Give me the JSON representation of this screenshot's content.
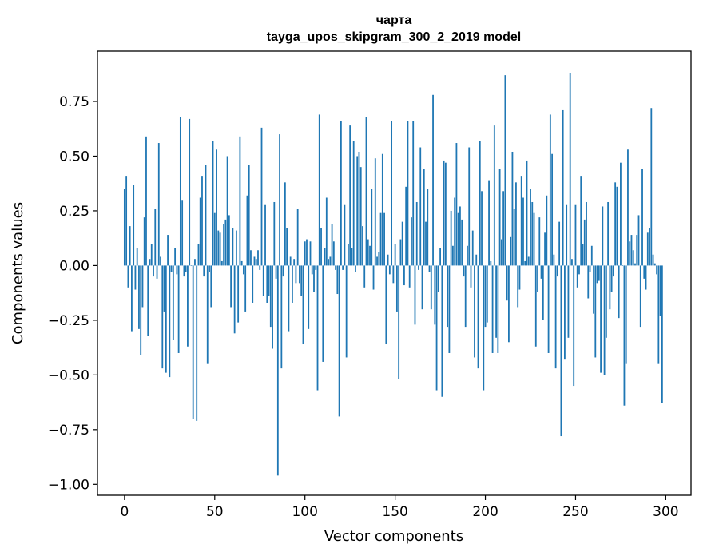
{
  "chart_data": {
    "type": "bar",
    "title": "чарта",
    "subtitle": "tayga_upos_skipgram_300_2_2019 model",
    "xlabel": "Vector components",
    "ylabel": "Components values",
    "xlim": [
      -15,
      314
    ],
    "ylim": [
      -1.05,
      0.98
    ],
    "xticks": [
      0,
      50,
      100,
      150,
      200,
      250,
      300
    ],
    "yticks": [
      -1.0,
      -0.75,
      -0.5,
      -0.25,
      0.0,
      0.25,
      0.5,
      0.75
    ],
    "xtick_labels": [
      "0",
      "50",
      "100",
      "150",
      "200",
      "250",
      "300"
    ],
    "ytick_labels": [
      "−1.00",
      "−0.75",
      "−0.50",
      "−0.25",
      "0.00",
      "0.25",
      "0.50",
      "0.75"
    ],
    "bar_color": "#1f77b4",
    "grid": false,
    "values": [
      0.35,
      0.41,
      -0.1,
      0.18,
      -0.3,
      0.37,
      -0.11,
      0.08,
      -0.29,
      -0.41,
      -0.19,
      0.22,
      0.59,
      -0.32,
      0.03,
      0.1,
      -0.05,
      0.26,
      -0.06,
      0.56,
      0.04,
      -0.47,
      -0.21,
      -0.49,
      0.14,
      -0.51,
      -0.03,
      -0.34,
      0.08,
      -0.04,
      -0.4,
      0.68,
      0.3,
      -0.05,
      -0.03,
      -0.37,
      0.67,
      0.0,
      -0.7,
      0.03,
      -0.71,
      0.1,
      0.31,
      0.41,
      -0.05,
      0.46,
      -0.45,
      -0.03,
      -0.19,
      0.57,
      0.24,
      0.53,
      0.16,
      0.15,
      0.02,
      0.19,
      0.21,
      0.5,
      0.23,
      -0.19,
      0.17,
      -0.31,
      0.16,
      -0.26,
      0.59,
      0.02,
      -0.04,
      -0.21,
      0.32,
      0.46,
      0.07,
      -0.17,
      0.04,
      0.03,
      0.07,
      -0.02,
      0.63,
      -0.14,
      0.28,
      -0.17,
      -0.14,
      -0.28,
      -0.38,
      0.29,
      -0.06,
      -0.96,
      0.6,
      -0.47,
      -0.05,
      0.38,
      0.17,
      -0.3,
      0.04,
      -0.17,
      0.03,
      -0.08,
      0.26,
      -0.08,
      -0.14,
      -0.36,
      0.11,
      0.12,
      -0.29,
      0.11,
      -0.04,
      -0.12,
      -0.02,
      -0.57,
      0.69,
      0.17,
      -0.44,
      0.08,
      0.31,
      0.03,
      0.04,
      0.19,
      0.11,
      -0.02,
      -0.13,
      -0.69,
      0.66,
      -0.02,
      0.28,
      -0.42,
      0.1,
      0.64,
      0.08,
      0.57,
      -0.03,
      0.5,
      0.52,
      0.45,
      0.18,
      -0.1,
      0.68,
      0.12,
      0.09,
      0.35,
      -0.11,
      0.49,
      0.04,
      0.06,
      0.24,
      0.51,
      0.24,
      -0.36,
      0.05,
      -0.04,
      0.66,
      -0.08,
      0.1,
      -0.21,
      -0.52,
      0.12,
      0.2,
      -0.09,
      0.36,
      0.66,
      -0.1,
      0.22,
      0.66,
      -0.27,
      0.29,
      -0.02,
      0.54,
      -0.2,
      0.44,
      0.2,
      0.35,
      -0.03,
      -0.2,
      0.78,
      -0.27,
      -0.57,
      -0.12,
      0.08,
      -0.6,
      0.48,
      0.47,
      -0.28,
      -0.4,
      0.25,
      0.09,
      0.31,
      0.56,
      0.24,
      0.27,
      0.21,
      -0.05,
      -0.28,
      0.09,
      0.54,
      -0.1,
      0.16,
      -0.42,
      0.05,
      -0.47,
      0.57,
      0.34,
      -0.57,
      -0.28,
      -0.26,
      0.39,
      0.02,
      -0.4,
      0.64,
      -0.33,
      -0.4,
      0.44,
      0.12,
      0.34,
      0.87,
      -0.16,
      -0.35,
      0.13,
      0.52,
      0.26,
      0.38,
      -0.19,
      -0.11,
      0.41,
      0.31,
      0.02,
      0.48,
      0.04,
      0.35,
      0.29,
      0.24,
      -0.37,
      -0.12,
      0.22,
      -0.06,
      -0.25,
      0.15,
      0.32,
      -0.4,
      0.69,
      0.51,
      0.05,
      -0.47,
      -0.05,
      0.2,
      -0.78,
      0.71,
      -0.43,
      0.28,
      -0.33,
      0.88,
      0.03,
      -0.55,
      0.28,
      -0.1,
      -0.04,
      0.41,
      0.1,
      0.21,
      0.29,
      -0.15,
      -0.03,
      0.09,
      -0.22,
      -0.42,
      -0.08,
      -0.07,
      -0.49,
      0.27,
      -0.5,
      -0.33,
      0.29,
      -0.2,
      -0.12,
      -0.05,
      0.38,
      0.36,
      -0.24,
      0.47,
      0.0,
      -0.64,
      -0.45,
      0.53,
      0.11,
      0.14,
      0.07,
      0.01,
      0.14,
      0.23,
      -0.28,
      0.44,
      -0.06,
      -0.11,
      0.15,
      0.17,
      0.72,
      0.05,
      0.01,
      -0.04,
      -0.45,
      -0.23,
      -0.63
    ]
  }
}
